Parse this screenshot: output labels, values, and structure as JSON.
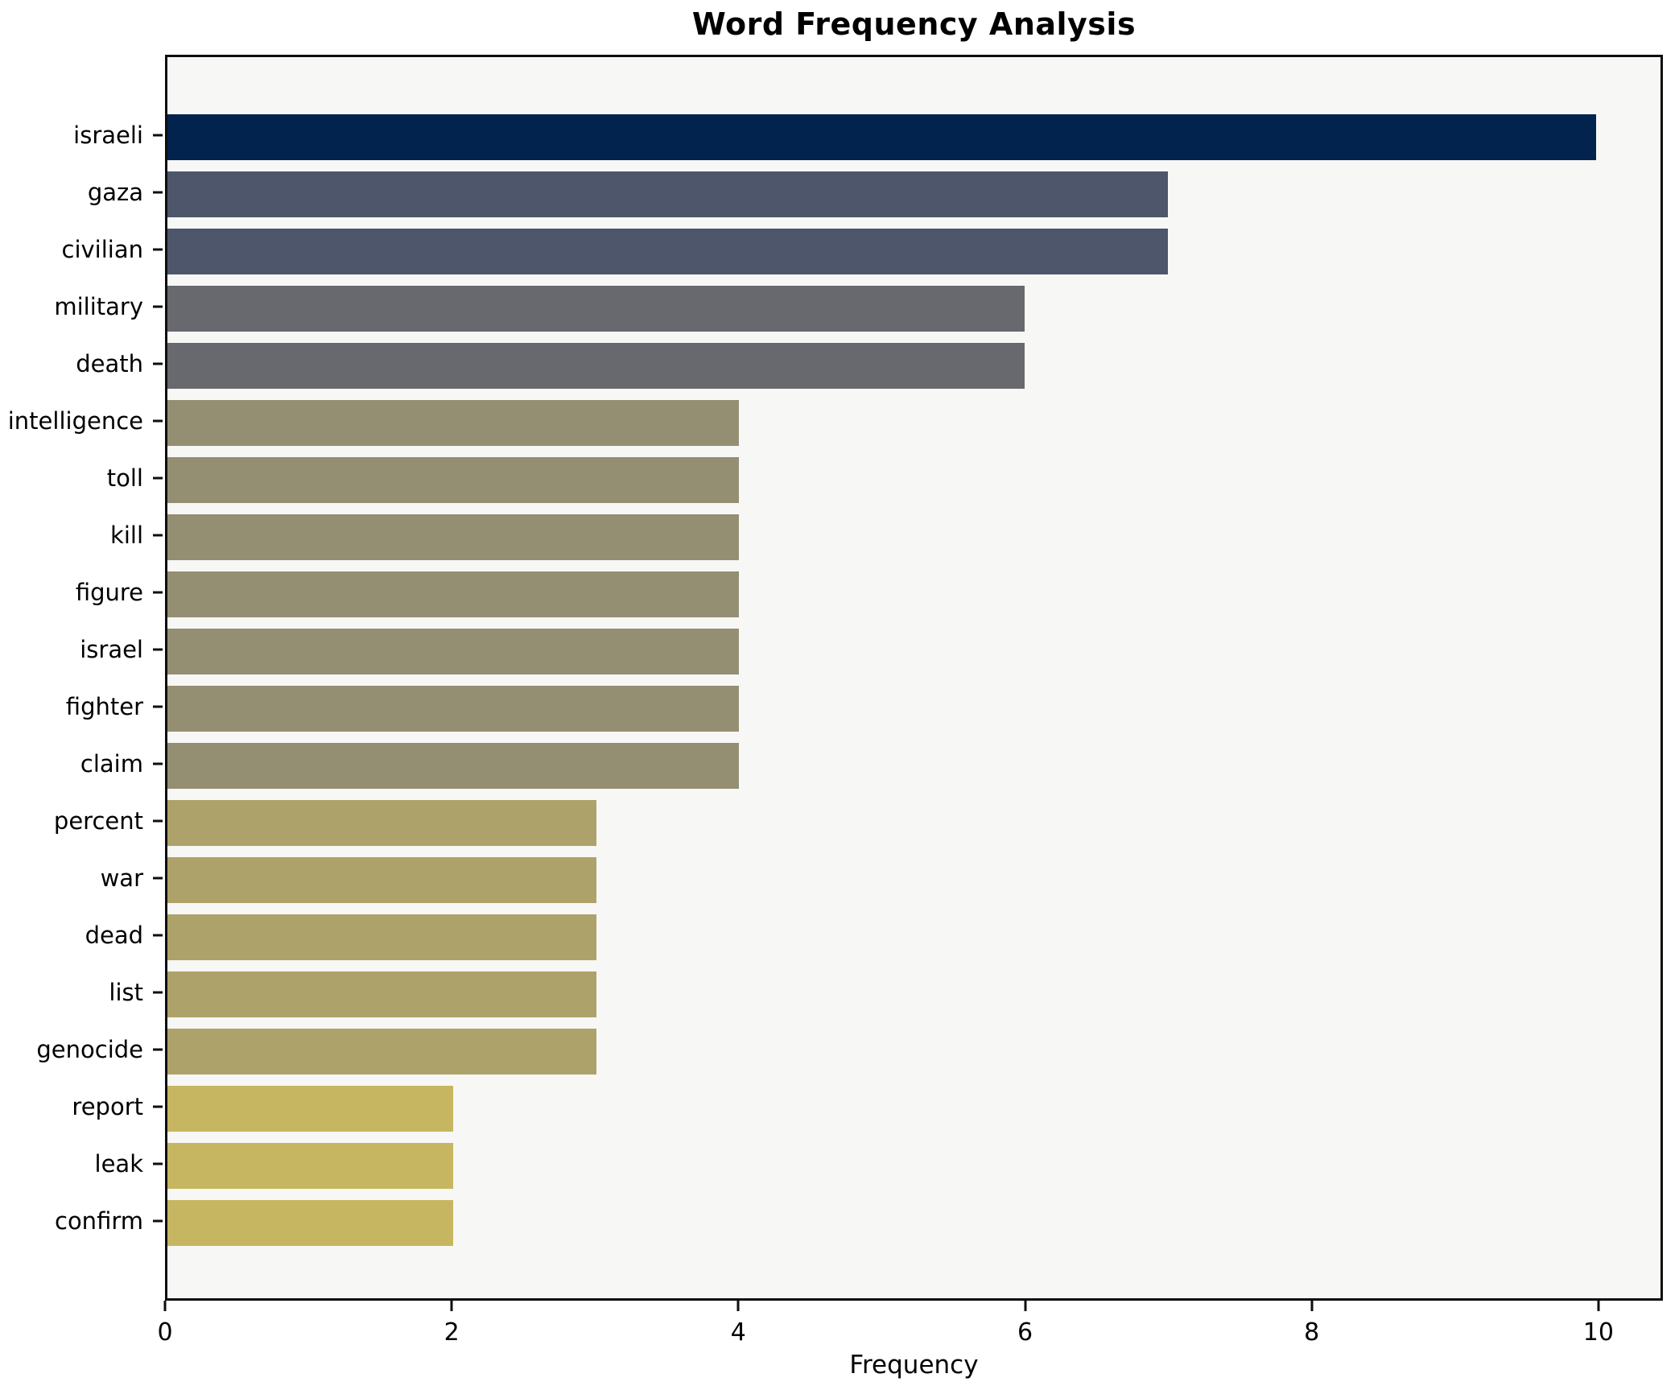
{
  "chart_data": {
    "type": "bar",
    "orientation": "horizontal",
    "title": "Word Frequency Analysis",
    "xlabel": "Frequency",
    "ylabel": "",
    "categories": [
      "israeli",
      "gaza",
      "civilian",
      "military",
      "death",
      "intelligence",
      "toll",
      "kill",
      "figure",
      "israel",
      "fighter",
      "claim",
      "percent",
      "war",
      "dead",
      "list",
      "genocide",
      "report",
      "leak",
      "confirm"
    ],
    "values": [
      10,
      7,
      7,
      6,
      6,
      4,
      4,
      4,
      4,
      4,
      4,
      4,
      3,
      3,
      3,
      3,
      3,
      2,
      2,
      2
    ],
    "bar_colors": [
      "#02234e",
      "#4d566b",
      "#4d566b",
      "#67696f",
      "#67696f",
      "#948e73",
      "#948e73",
      "#948e73",
      "#948e73",
      "#948e73",
      "#948e73",
      "#948e73",
      "#ada269",
      "#ada269",
      "#ada269",
      "#ada269",
      "#ada269",
      "#c7b661",
      "#c7b661",
      "#c7b661"
    ],
    "x_ticks": [
      0,
      2,
      4,
      6,
      8,
      10
    ],
    "xlim": [
      0,
      10.45
    ],
    "grid": false,
    "legend": null,
    "plot_background": "#f7f7f5",
    "frame_color": "#0e0e0e"
  }
}
